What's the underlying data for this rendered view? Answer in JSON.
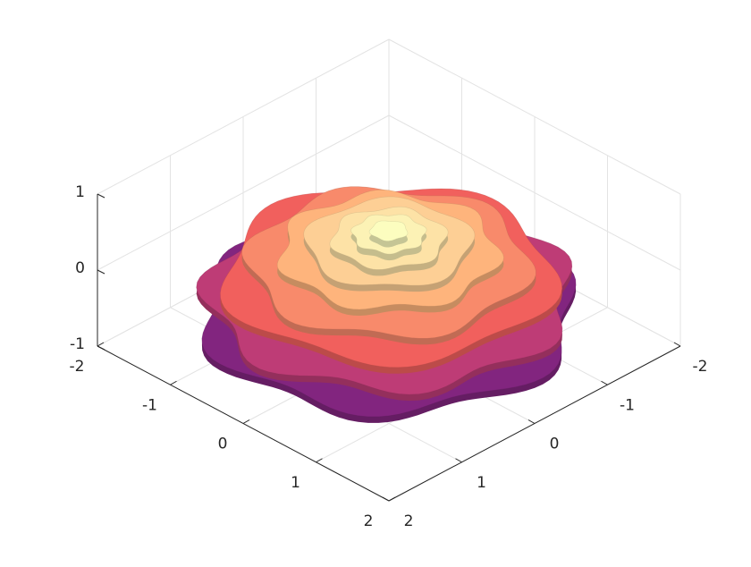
{
  "chart_data": {
    "type": "surface3d",
    "xlim": [
      -2,
      2
    ],
    "ylim": [
      -2,
      2
    ],
    "zlim": [
      -1,
      1
    ],
    "xticks": [
      -2,
      -1,
      0,
      1,
      2
    ],
    "yticks": [
      -2,
      -1,
      0,
      1,
      2
    ],
    "zticks": [
      -1,
      0,
      1
    ],
    "grid": true,
    "colormap": [
      "#2c115f",
      "#721f81",
      "#b73779",
      "#f1605d",
      "#feb078",
      "#fcfdbf"
    ],
    "surface": {
      "r": [
        0.5,
        1.8,
        1.75,
        1.6,
        1.35,
        1.05,
        0.8,
        0.55,
        0.35,
        0.18
      ],
      "z": [
        -0.9,
        -0.55,
        -0.3,
        -0.05,
        0.1,
        0.25,
        0.35,
        0.42,
        0.48,
        0.52
      ]
    }
  }
}
